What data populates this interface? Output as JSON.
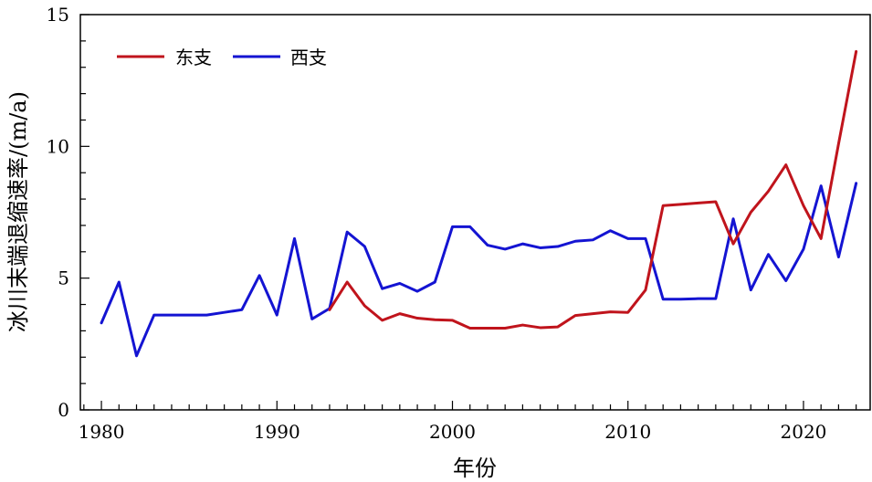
{
  "chart_data": {
    "type": "line",
    "title": "",
    "xlabel": "年份",
    "ylabel": "冰川末端退缩速率/(m/a)",
    "xlim": [
      1978.8,
      2023.8
    ],
    "ylim": [
      0,
      15
    ],
    "xticks": [
      1980,
      1990,
      2000,
      2010,
      2020
    ],
    "xtick_labels": [
      "1980",
      "1990",
      "2000",
      "2010",
      "2020"
    ],
    "yticks": [
      0,
      5,
      10,
      15
    ],
    "ytick_labels": [
      "0",
      "5",
      "10",
      "15"
    ],
    "legend_position": "top-left",
    "grid": false,
    "series": [
      {
        "name": "东支",
        "color": "#c0141c",
        "x": [
          1993,
          1994,
          1995,
          1996,
          1997,
          1998,
          1999,
          2000,
          2001,
          2002,
          2003,
          2004,
          2005,
          2006,
          2007,
          2008,
          2009,
          2010,
          2011,
          2012,
          2013,
          2014,
          2015,
          2016,
          2017,
          2018,
          2019,
          2020,
          2021,
          2022,
          2023
        ],
        "values": [
          3.8,
          4.85,
          3.95,
          3.4,
          3.65,
          3.48,
          3.42,
          3.4,
          3.1,
          3.1,
          3.1,
          3.22,
          3.12,
          3.15,
          3.58,
          3.65,
          3.72,
          3.7,
          4.55,
          7.75,
          7.8,
          7.85,
          7.9,
          6.3,
          7.5,
          8.3,
          9.3,
          7.75,
          6.5,
          10.1,
          13.6
        ]
      },
      {
        "name": "西支",
        "color": "#1414d2",
        "x": [
          1980,
          1981,
          1982,
          1983,
          1984,
          1985,
          1986,
          1987,
          1988,
          1989,
          1990,
          1991,
          1992,
          1993,
          1994,
          1995,
          1996,
          1997,
          1998,
          1999,
          2000,
          2001,
          2002,
          2003,
          2004,
          2005,
          2006,
          2007,
          2008,
          2009,
          2010,
          2011,
          2012,
          2013,
          2014,
          2015,
          2016,
          2017,
          2018,
          2019,
          2020,
          2021,
          2022,
          2023
        ],
        "values": [
          3.3,
          4.85,
          2.05,
          3.6,
          3.6,
          3.6,
          3.6,
          3.7,
          3.8,
          5.1,
          3.6,
          6.5,
          3.45,
          3.85,
          6.75,
          6.2,
          4.6,
          4.8,
          4.5,
          4.85,
          6.95,
          6.95,
          6.25,
          6.1,
          6.3,
          6.15,
          6.2,
          6.4,
          6.45,
          6.8,
          6.5,
          6.5,
          4.2,
          4.2,
          4.22,
          4.22,
          7.25,
          4.55,
          5.9,
          4.9,
          6.1,
          8.5,
          5.8,
          8.6
        ]
      }
    ]
  }
}
